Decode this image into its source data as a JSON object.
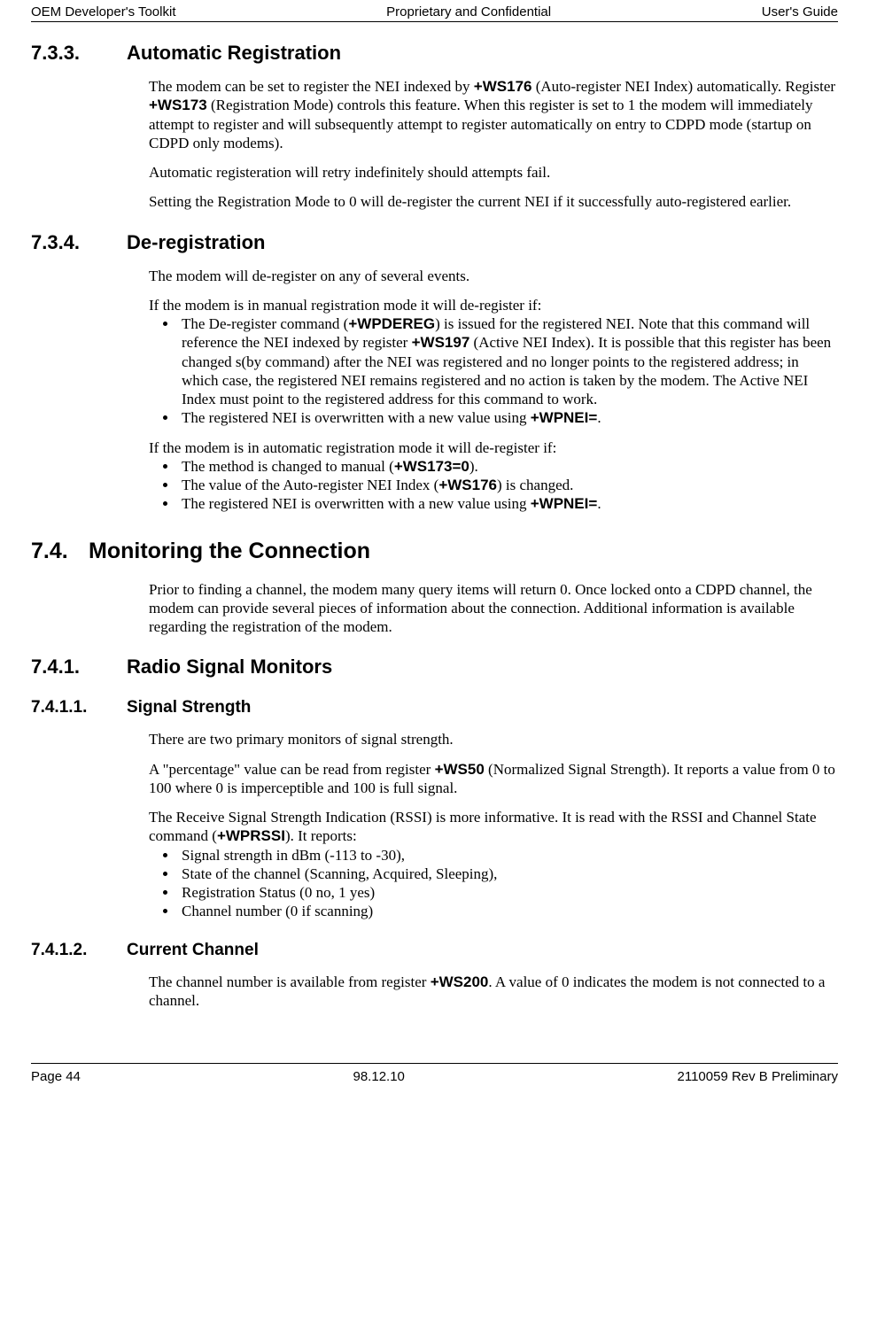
{
  "header": {
    "left": "OEM Developer's Toolkit",
    "center": "Proprietary and Confidential",
    "right": "User's Guide"
  },
  "footer": {
    "left": "Page 44",
    "center": "98.12.10",
    "right": "2110059 Rev B Preliminary"
  },
  "s733": {
    "num": "7.3.3.",
    "title": "Automatic Registration",
    "p1a": "The modem can be set to register the NEI indexed by ",
    "p1b": "+WS176",
    "p1c": " (Auto-register NEI Index) automatically.  Register ",
    "p1d": "+WS173",
    "p1e": " (Registration Mode) controls this feature.  When this register is set to 1 the modem will immediately attempt to register and will subsequently attempt to register automatically on entry to CDPD mode (startup on CDPD only modems).",
    "p2": "Automatic registeration will retry indefinitely should attempts fail.",
    "p3": "Setting the Registration Mode to 0 will de-register the current NEI if it successfully auto-registered earlier."
  },
  "s734": {
    "num": "7.3.4.",
    "title": "De-registration",
    "p1": "The modem will de-register on any of several events.",
    "p2": "If the modem is in manual registration mode it will de-register if:",
    "li1a": "The De-register command (",
    "li1b": "+WPDEREG",
    "li1c": ") is issued for the registered NEI.  Note that this command will reference the NEI indexed by register ",
    "li1d": "+WS197",
    "li1e": " (Active NEI Index).  It is possible that this register has been changed s(by command) after the NEI was registered and no longer points to the registered address; in which case, the registered NEI remains registered and no action is taken by the modem.  The Active NEI Index must point to the registered address for this command to work.",
    "li2a": "The registered NEI is overwritten with a new value using ",
    "li2b": "+WPNEI=",
    "li2c": ".",
    "p3": "If the modem is in automatic registration mode it will de-register if:",
    "li3a": "The method is changed to manual (",
    "li3b": "+WS173=0",
    "li3c": ").",
    "li4a": "The value of the Auto-register NEI Index (",
    "li4b": "+WS176",
    "li4c": ") is changed.",
    "li5a": "The registered NEI is overwritten with a new value using ",
    "li5b": "+WPNEI=",
    "li5c": "."
  },
  "s74": {
    "num": "7.4.",
    "title": "Monitoring the Connection",
    "p1": "Prior to finding a channel, the modem many query items will return 0.  Once locked onto a CDPD channel, the modem can provide several pieces of information about the connection.  Additional information is available regarding the registration of the modem."
  },
  "s741": {
    "num": "7.4.1.",
    "title": "Radio Signal Monitors"
  },
  "s7411": {
    "num": "7.4.1.1.",
    "title": "Signal Strength",
    "p1": "There are two primary monitors of signal strength.",
    "p2a": "A \"percentage\" value can be read from register ",
    "p2b": "+WS50",
    "p2c": " (Normalized Signal Strength).  It reports a value from 0 to 100 where 0 is imperceptible and 100 is full signal.",
    "p3a": "The Receive Signal Strength Indication (RSSI) is more informative.  It is read with the RSSI and Channel State command (",
    "p3b": "+WPRSSI",
    "p3c": ").  It reports:",
    "li1": "Signal strength in dBm (-113 to -30),",
    "li2": "State of the channel (Scanning, Acquired, Sleeping),",
    "li3": "Registration Status (0 no, 1 yes)",
    "li4": "Channel number (0 if scanning)"
  },
  "s7412": {
    "num": "7.4.1.2.",
    "title": "Current Channel",
    "p1a": "The channel number is available from register ",
    "p1b": "+WS200",
    "p1c": ".  A value of 0 indicates the modem is not connected to a channel."
  }
}
